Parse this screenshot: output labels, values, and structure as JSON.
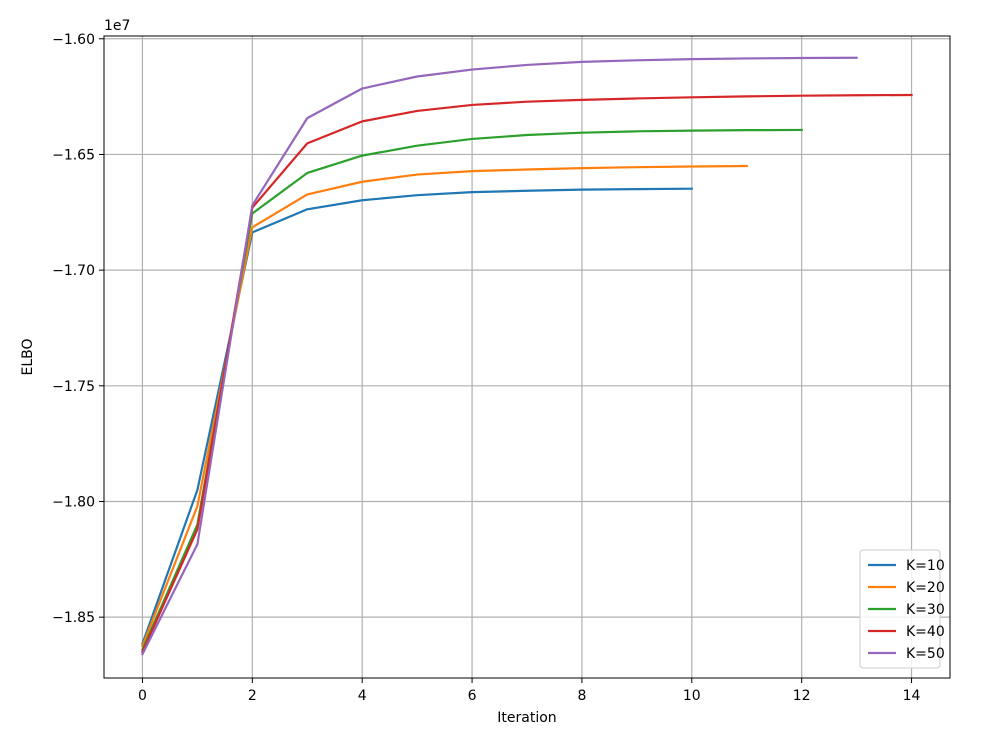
{
  "chart_data": {
    "type": "line",
    "xlabel": "Iteration",
    "ylabel": "ELBO",
    "offset_text": "1e7",
    "xlim": [
      -0.7,
      14.7
    ],
    "ylim": [
      -1.8763,
      -1.5988
    ],
    "x_ticks": [
      0,
      2,
      4,
      6,
      8,
      10,
      12,
      14
    ],
    "x_tick_labels": [
      "0",
      "2",
      "4",
      "6",
      "8",
      "10",
      "12",
      "14"
    ],
    "y_ticks": [
      -1.85,
      -1.8,
      -1.75,
      -1.7,
      -1.65,
      -1.6
    ],
    "y_tick_labels": [
      "−1.85",
      "−1.80",
      "−1.75",
      "−1.70",
      "−1.65",
      "−1.60"
    ],
    "grid": true,
    "legend_position": "bottom-right",
    "series": [
      {
        "name": "K=10",
        "color": "#1f77b4",
        "x": [
          0,
          1,
          2,
          3,
          4,
          5,
          6,
          7,
          8,
          9,
          10
        ],
        "y": [
          -1.8615,
          -1.795,
          -1.6837,
          -1.6737,
          -1.6698,
          -1.6676,
          -1.6663,
          -1.6657,
          -1.6652,
          -1.665,
          -1.6648
        ]
      },
      {
        "name": "K=20",
        "color": "#ff7f0e",
        "x": [
          0,
          1,
          2,
          3,
          4,
          5,
          6,
          7,
          8,
          9,
          10,
          11
        ],
        "y": [
          -1.8625,
          -1.802,
          -1.6815,
          -1.6673,
          -1.6618,
          -1.6587,
          -1.6572,
          -1.6565,
          -1.6559,
          -1.6555,
          -1.6552,
          -1.655
        ]
      },
      {
        "name": "K=30",
        "color": "#2ca02c",
        "x": [
          0,
          1,
          2,
          3,
          4,
          5,
          6,
          7,
          8,
          9,
          10,
          11,
          12
        ],
        "y": [
          -1.864,
          -1.81,
          -1.6755,
          -1.658,
          -1.6505,
          -1.6462,
          -1.6433,
          -1.6416,
          -1.6406,
          -1.64,
          -1.6397,
          -1.6395,
          -1.6394
        ]
      },
      {
        "name": "K=40",
        "color": "#d62728",
        "x": [
          0,
          1,
          2,
          3,
          4,
          5,
          6,
          7,
          8,
          9,
          10,
          11,
          12,
          13,
          14
        ],
        "y": [
          -1.865,
          -1.812,
          -1.673,
          -1.6452,
          -1.6357,
          -1.6312,
          -1.6286,
          -1.6272,
          -1.6264,
          -1.6258,
          -1.6253,
          -1.6249,
          -1.6246,
          -1.6244,
          -1.6243
        ]
      },
      {
        "name": "K=50",
        "color": "#9467bd",
        "x": [
          0,
          1,
          2,
          3,
          4,
          5,
          6,
          7,
          8,
          9,
          10,
          11,
          12,
          13
        ],
        "y": [
          -1.866,
          -1.8185,
          -1.672,
          -1.6343,
          -1.6215,
          -1.6163,
          -1.6133,
          -1.6113,
          -1.61,
          -1.6093,
          -1.6088,
          -1.6085,
          -1.6083,
          -1.6082
        ]
      }
    ]
  }
}
